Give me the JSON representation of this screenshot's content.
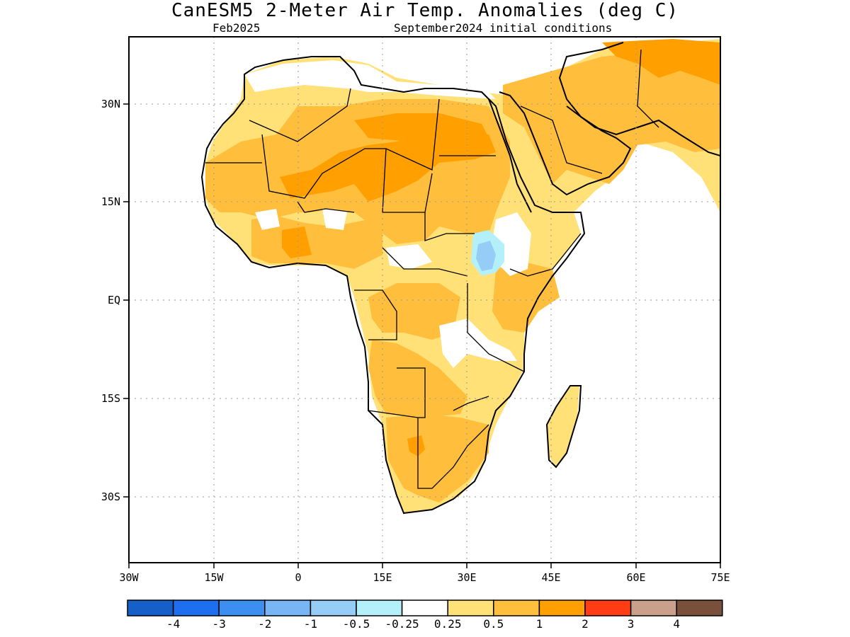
{
  "title": "CanESM5 2-Meter Air Temp. Anomalies (deg C)",
  "subtitle_left": "Feb2025",
  "subtitle_right": "September2024 initial conditions",
  "map": {
    "lon_range": [
      -30,
      75
    ],
    "lat_range": [
      -46,
      47
    ],
    "lon_ticks": [
      "30W",
      "15W",
      "0",
      "15E",
      "30E",
      "45E",
      "60E",
      "75E"
    ],
    "lat_ticks": [
      "30N",
      "15N",
      "EQ",
      "15S",
      "30S"
    ]
  },
  "colorbar": {
    "colors": [
      "#1560c8",
      "#1e6ff0",
      "#3c8ff0",
      "#78b5f5",
      "#96cdf7",
      "#b4f0fa",
      "#ffffff",
      "#ffe178",
      "#ffbe3c",
      "#ffa000",
      "#ff3c14",
      "#c8a08c",
      "#78503c"
    ],
    "labels": [
      "-4",
      "-3",
      "-2",
      "-1",
      "-0.5",
      "-0.25",
      "0.25",
      "0.5",
      "1",
      "2",
      "3",
      "4"
    ]
  }
}
